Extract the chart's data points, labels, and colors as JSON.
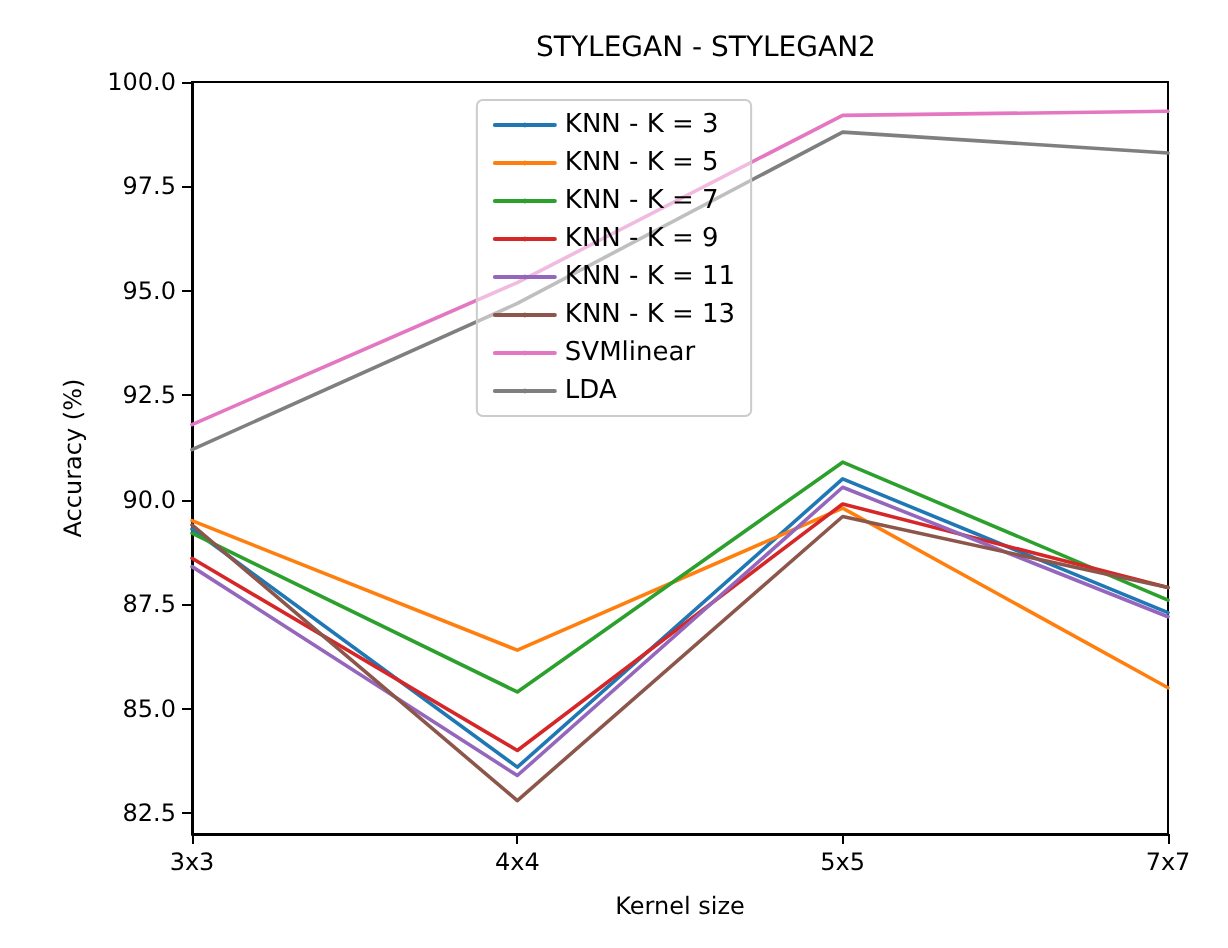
{
  "chart_data": {
    "type": "line",
    "title": "STYLEGAN - STYLEGAN2",
    "xlabel": "Kernel size",
    "ylabel": "Accuracy (%)",
    "categories": [
      "3x3",
      "4x4",
      "5x5",
      "7x7"
    ],
    "ylim": [
      82,
      100
    ],
    "yticks": [
      {
        "value": 82.5,
        "label": "82.5"
      },
      {
        "value": 85,
        "label": "85.0"
      },
      {
        "value": 87.5,
        "label": "87.5"
      },
      {
        "value": 90,
        "label": "90.0"
      },
      {
        "value": 92.5,
        "label": "92.5"
      },
      {
        "value": 95,
        "label": "95.0"
      },
      {
        "value": 97.5,
        "label": "97.5"
      },
      {
        "value": 100,
        "label": "100.0"
      }
    ],
    "grid": false,
    "legend": "top",
    "marker": "none",
    "line_style": "solid",
    "series": [
      {
        "name": "KNN - K = 3",
        "color": "#1f77b4",
        "values": [
          89.3,
          83.6,
          90.5,
          87.3
        ]
      },
      {
        "name": "KNN - K = 5",
        "color": "#ff7f0e",
        "values": [
          89.5,
          86.4,
          89.8,
          85.5
        ]
      },
      {
        "name": "KNN - K = 7",
        "color": "#2ca02c",
        "values": [
          89.2,
          85.4,
          90.9,
          87.6
        ]
      },
      {
        "name": "KNN - K = 9",
        "color": "#d62728",
        "values": [
          88.6,
          84.0,
          89.9,
          87.9
        ]
      },
      {
        "name": "KNN - K = 11",
        "color": "#9467bd",
        "values": [
          88.4,
          83.4,
          90.3,
          87.2
        ]
      },
      {
        "name": "KNN - K = 13",
        "color": "#8c564b",
        "values": [
          89.4,
          82.8,
          89.6,
          87.9
        ]
      },
      {
        "name": "SVMlinear",
        "color": "#e377c2",
        "values": [
          91.8,
          95.2,
          99.2,
          99.3
        ]
      },
      {
        "name": "LDA",
        "color": "#7f7f7f",
        "values": [
          91.2,
          94.7,
          98.8,
          98.3
        ]
      }
    ]
  }
}
